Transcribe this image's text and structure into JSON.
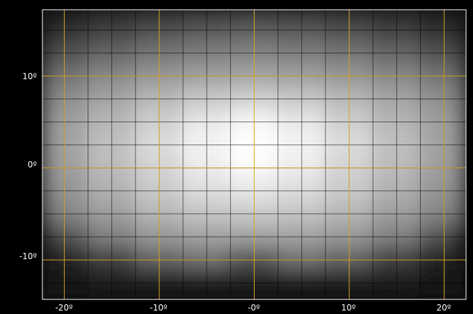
{
  "chart_data": {
    "type": "heatmap",
    "title": "",
    "xlabel": "",
    "ylabel": "",
    "xlim": [
      -22.3,
      22.3
    ],
    "ylim": [
      -14.3,
      17.2
    ],
    "grid": true,
    "major_grid_color": "#d9a62a",
    "minor_grid_color": "#000000",
    "frame_color": "#ffffff",
    "colormap": "grayscale",
    "x_major_ticks": [
      -20,
      -10,
      0,
      10,
      20
    ],
    "y_major_ticks": [
      -10,
      0,
      10
    ],
    "x_minor_step": 2.5,
    "y_minor_step": 2.5,
    "x_tick_labels": [
      "-20º",
      "-10º",
      "-0º",
      "10º",
      "20º"
    ],
    "y_tick_labels": [
      "-10º",
      "0º",
      "10º"
    ],
    "intensity_peak": {
      "x": 0,
      "y": 1.5,
      "value": 1.0
    },
    "intensity_profile": {
      "x": [
        -22.3,
        -20,
        -15,
        -10,
        -5,
        0,
        5,
        10,
        15,
        20,
        22.3
      ],
      "y": [
        17.2,
        15,
        12.5,
        10,
        7.5,
        5,
        2.5,
        0,
        -2.5,
        -5,
        -7.5,
        -10,
        -12.5,
        -14.3
      ],
      "values": [
        [
          0.05,
          0.08,
          0.12,
          0.16,
          0.19,
          0.2,
          0.19,
          0.16,
          0.12,
          0.08,
          0.05
        ],
        [
          0.1,
          0.14,
          0.2,
          0.26,
          0.3,
          0.32,
          0.3,
          0.26,
          0.2,
          0.14,
          0.1
        ],
        [
          0.22,
          0.28,
          0.36,
          0.42,
          0.46,
          0.48,
          0.46,
          0.42,
          0.36,
          0.28,
          0.22
        ],
        [
          0.36,
          0.42,
          0.5,
          0.56,
          0.6,
          0.62,
          0.6,
          0.56,
          0.5,
          0.42,
          0.36
        ],
        [
          0.46,
          0.53,
          0.62,
          0.7,
          0.76,
          0.8,
          0.76,
          0.7,
          0.62,
          0.53,
          0.46
        ],
        [
          0.52,
          0.6,
          0.7,
          0.8,
          0.9,
          0.96,
          0.9,
          0.8,
          0.7,
          0.6,
          0.52
        ],
        [
          0.54,
          0.62,
          0.74,
          0.85,
          0.95,
          1.0,
          0.95,
          0.85,
          0.74,
          0.62,
          0.54
        ],
        [
          0.52,
          0.6,
          0.72,
          0.82,
          0.92,
          0.98,
          0.92,
          0.82,
          0.72,
          0.6,
          0.52
        ],
        [
          0.48,
          0.56,
          0.68,
          0.78,
          0.86,
          0.9,
          0.86,
          0.78,
          0.68,
          0.56,
          0.48
        ],
        [
          0.4,
          0.5,
          0.6,
          0.7,
          0.76,
          0.78,
          0.76,
          0.7,
          0.6,
          0.5,
          0.4
        ],
        [
          0.1,
          0.3,
          0.48,
          0.58,
          0.62,
          0.62,
          0.62,
          0.58,
          0.48,
          0.3,
          0.1
        ],
        [
          0.04,
          0.1,
          0.22,
          0.36,
          0.42,
          0.3,
          0.42,
          0.36,
          0.22,
          0.1,
          0.04
        ],
        [
          0.03,
          0.04,
          0.06,
          0.08,
          0.08,
          0.07,
          0.08,
          0.08,
          0.06,
          0.04,
          0.03
        ],
        [
          0.03,
          0.03,
          0.04,
          0.05,
          0.05,
          0.05,
          0.05,
          0.05,
          0.04,
          0.03,
          0.03
        ]
      ]
    }
  }
}
